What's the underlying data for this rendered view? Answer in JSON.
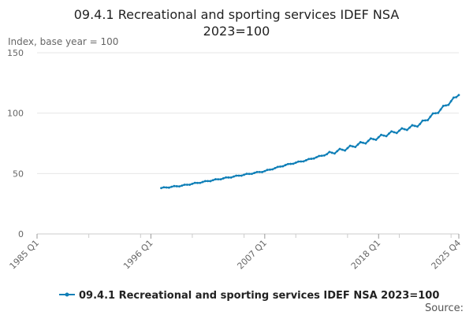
{
  "chart_data": {
    "type": "line",
    "title_line1": "09.4.1 Recreational and sporting services IDEF NSA",
    "title_line2": "2023=100",
    "ylabel": "Index, base year = 100",
    "xlabel": "",
    "ylim": [
      0,
      150
    ],
    "yticks": [
      "0",
      "50",
      "100",
      "150"
    ],
    "x_ticks": [
      "1985 Q1",
      "1996 Q1",
      "2007 Q1",
      "2018 Q1",
      "2025 Q4"
    ],
    "x_range_quarters": [
      "1985 Q1",
      "2025 Q4"
    ],
    "grid": true,
    "legend_position": "bottom",
    "source_label": "Source:",
    "colors": {
      "series": "#0f7fb7",
      "grid": "#e6e6e6",
      "axis": "#cccccc"
    },
    "series": [
      {
        "name": "09.4.1 Recreational and sporting services IDEF NSA 2023=100",
        "start": "1997 Q1",
        "end": "2025 Q4",
        "anchors": [
          {
            "q": "1997 Q1",
            "v": 38
          },
          {
            "q": "1999 Q1",
            "v": 40
          },
          {
            "q": "2001 Q1",
            "v": 43
          },
          {
            "q": "2003 Q1",
            "v": 46
          },
          {
            "q": "2005 Q1",
            "v": 49
          },
          {
            "q": "2007 Q1",
            "v": 52
          },
          {
            "q": "2009 Q1",
            "v": 57
          },
          {
            "q": "2011 Q1",
            "v": 61
          },
          {
            "q": "2013 Q1",
            "v": 66
          },
          {
            "q": "2015 Q1",
            "v": 71
          },
          {
            "q": "2017 Q1",
            "v": 77
          },
          {
            "q": "2019 Q1",
            "v": 83
          },
          {
            "q": "2021 Q1",
            "v": 88
          },
          {
            "q": "2022 Q1",
            "v": 91
          },
          {
            "q": "2023 Q1",
            "v": 97
          },
          {
            "q": "2024 Q1",
            "v": 103
          },
          {
            "q": "2025 Q4",
            "v": 115
          }
        ]
      }
    ]
  }
}
